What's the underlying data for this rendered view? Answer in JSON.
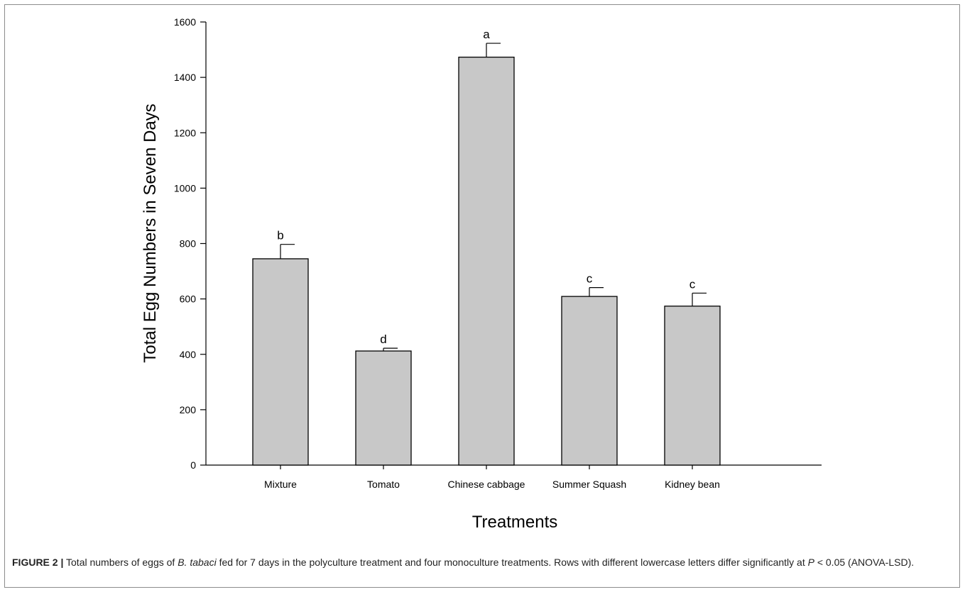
{
  "chart_data": {
    "type": "bar",
    "categories": [
      "Mixture",
      "Tomato",
      "Chinese cabbage",
      "Summer Squash",
      "Kidney bean"
    ],
    "values": [
      745,
      412,
      1473,
      609,
      574
    ],
    "errors": [
      52,
      10,
      50,
      32,
      47
    ],
    "significance_letters": [
      "b",
      "d",
      "a",
      "c",
      "c"
    ],
    "xlabel": "Treatments",
    "ylabel": "Total Egg Numbers in Seven Days",
    "ylim": [
      0,
      1600
    ],
    "yticks": [
      0,
      200,
      400,
      600,
      800,
      1000,
      1200,
      1400,
      1600
    ],
    "grid": false,
    "bar_color": "#c8c8c8",
    "bar_edge_color": "#000000"
  },
  "caption": {
    "label": "FIGURE 2 |",
    "part1": " Total numbers of eggs of ",
    "species": "B. tabaci",
    "part2": " fed for 7 days in the polyculture treatment and four monoculture treatments. Rows with different lowercase letters differ significantly at ",
    "p_symbol": "P",
    "part3": " < 0.05 (ANOVA-LSD)."
  }
}
